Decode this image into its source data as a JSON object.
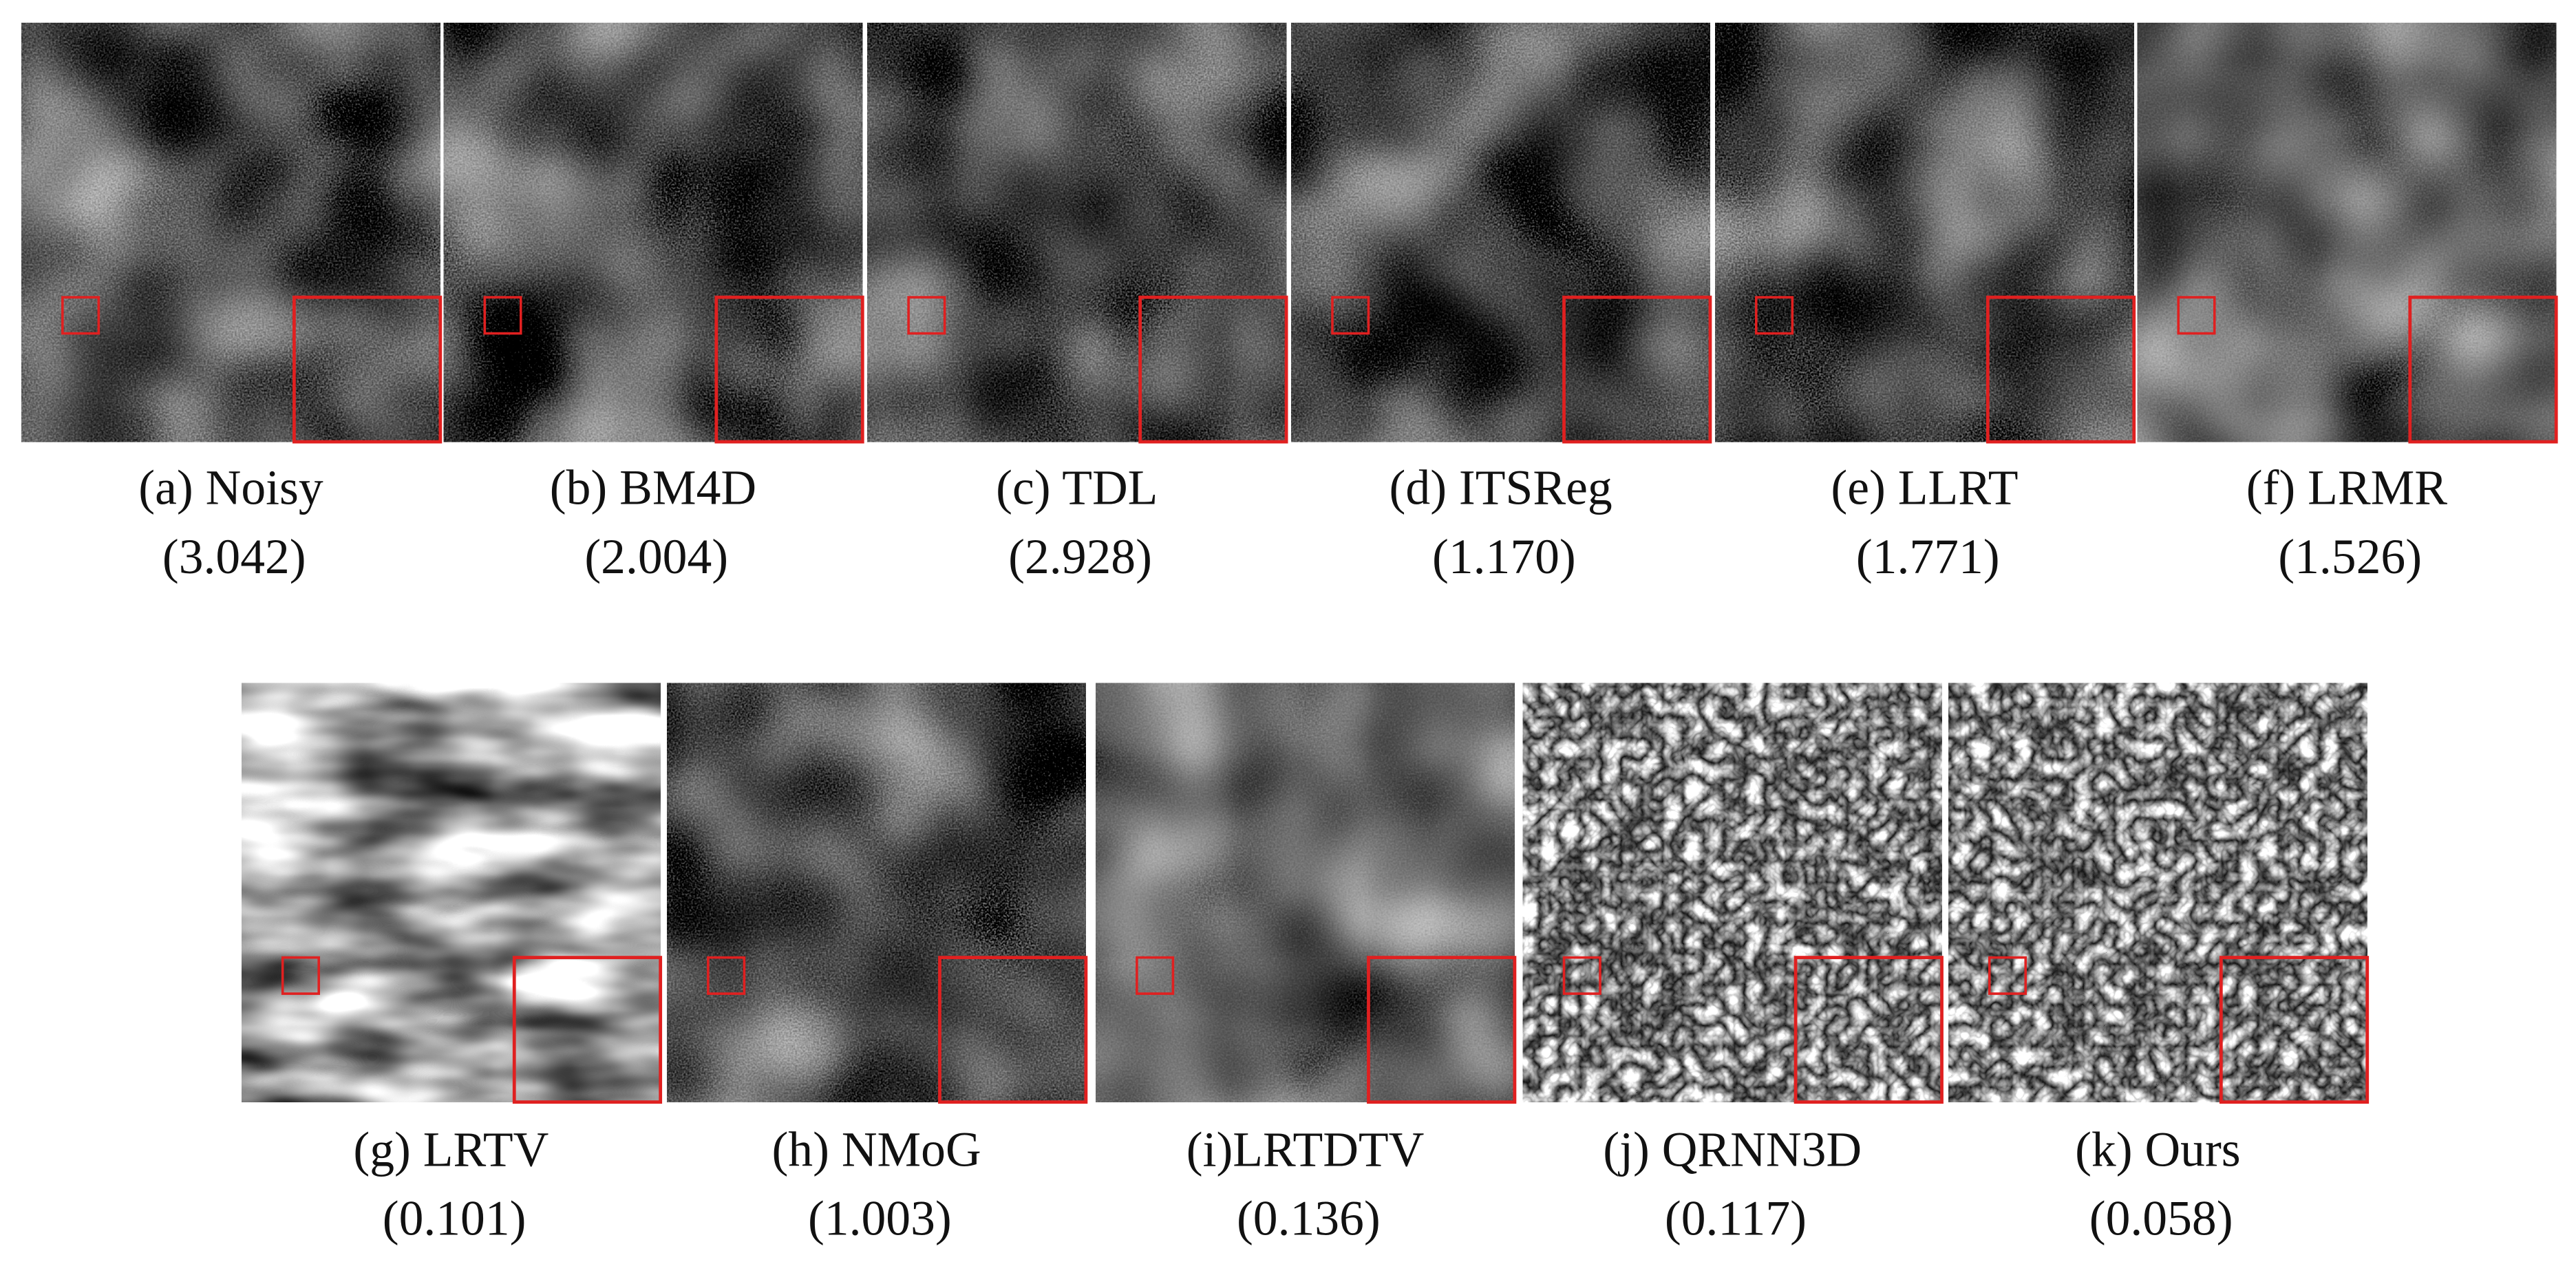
{
  "panels": [
    {
      "caption": "(a) Noisy",
      "score": "(3.042)"
    },
    {
      "caption": "(b) BM4D",
      "score": "(2.004)"
    },
    {
      "caption": "(c) TDL",
      "score": "(2.928)"
    },
    {
      "caption": "(d) ITSReg",
      "score": "(1.170)"
    },
    {
      "caption": "(e) LLRT",
      "score": "(1.771)"
    },
    {
      "caption": "(f) LRMR",
      "score": "(1.526)"
    },
    {
      "caption": "(g) LRTV",
      "score": "(0.101)"
    },
    {
      "caption": "(h) NMoG",
      "score": "(1.003)"
    },
    {
      "caption": "(i)LRTDTV",
      "score": "(0.136)"
    },
    {
      "caption": "(j) QRNN3D",
      "score": "(0.117)"
    },
    {
      "caption": "(k) Ours",
      "score": "(0.058)"
    }
  ]
}
